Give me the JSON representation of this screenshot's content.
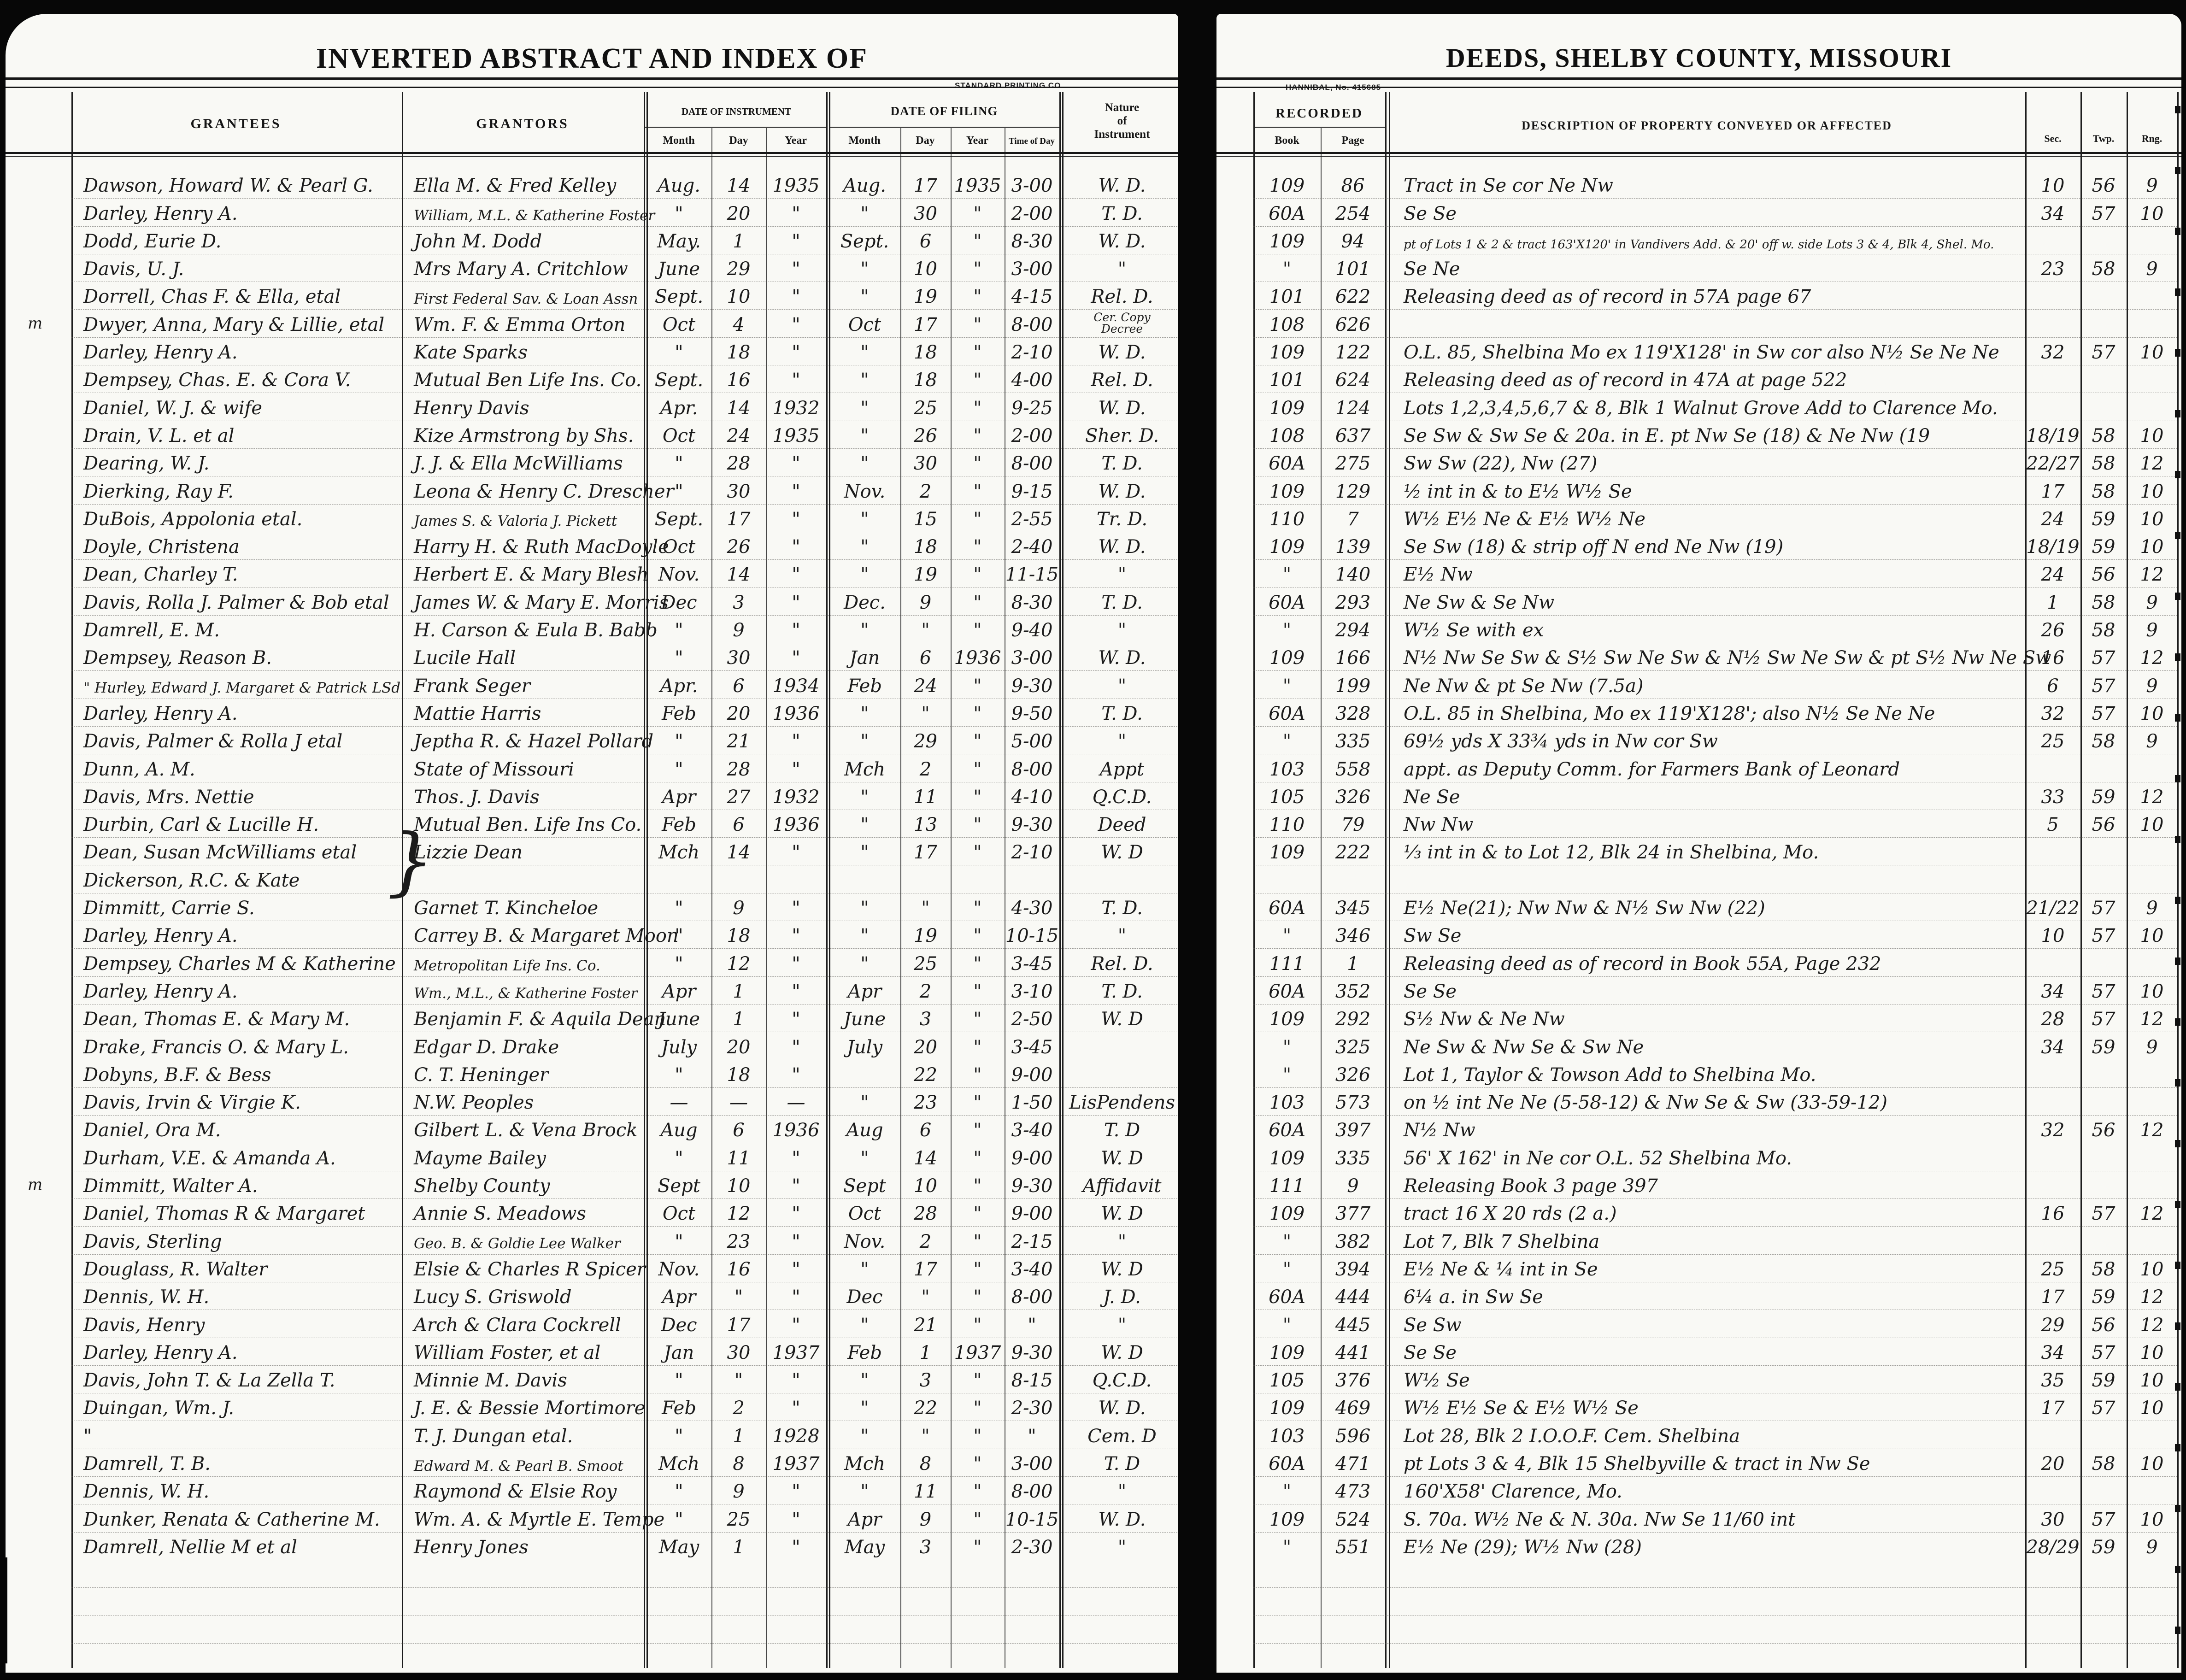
{
  "page_left": {
    "title": "INVERTED ABSTRACT AND INDEX OF",
    "printer_note": "STANDARD PRINTING CO.",
    "headers": {
      "grantees": "GRANTEES",
      "grantors": "GRANTORS",
      "date_of_instrument": "DATE OF INSTRUMENT",
      "date_of_filing": "DATE OF FILING",
      "month": "Month",
      "day": "Day",
      "year": "Year",
      "time_of_day": "Time of Day",
      "nature": "Nature\nof\nInstrument"
    }
  },
  "page_right": {
    "title": "DEEDS,  SHELBY  COUNTY,  MISSOURI",
    "printer_note": "HANNIBAL,  No. 415685",
    "headers": {
      "recorded": "RECORDED",
      "book": "Book",
      "page": "Page",
      "description": "DESCRIPTION OF PROPERTY CONVEYED OR AFFECTED",
      "sec": "Sec.",
      "twp": "Twp.",
      "rng": "Rng."
    }
  },
  "marginalia": [
    {
      "glyph": "m",
      "row": 6
    },
    {
      "glyph": "m",
      "row": 37
    },
    {
      "glyph": "}",
      "row": 25,
      "span": 2
    }
  ],
  "rows": [
    {
      "g": "Dawson, Howard W. & Pearl G.",
      "r": "Ella M. & Fred Kelley",
      "im": "Aug.",
      "id": "14",
      "iy": "1935",
      "fm": "Aug.",
      "fd": "17",
      "fy": "1935",
      "t": "3-00",
      "n": "W. D.",
      "bk": "109",
      "pg": "86",
      "d": "Tract in Se cor Ne Nw",
      "s": "10",
      "tw": "56",
      "rn": "9"
    },
    {
      "g": "Darley, Henry A.",
      "r": "William, M.L. & Katherine Foster",
      "im": "\"",
      "id": "20",
      "iy": "\"",
      "fm": "\"",
      "fd": "30",
      "fy": "\"",
      "t": "2-00",
      "n": "T. D.",
      "bk": "60A",
      "pg": "254",
      "d": "Se Se",
      "s": "34",
      "tw": "57",
      "rn": "10"
    },
    {
      "g": "Dodd, Eurie D.",
      "r": "John M. Dodd",
      "im": "May.",
      "id": "1",
      "iy": "\"",
      "fm": "Sept.",
      "fd": "6",
      "fy": "\"",
      "t": "8-30",
      "n": "W. D.",
      "bk": "109",
      "pg": "94",
      "d": "pt of Lots 1 & 2 & tract 163'X120' in Vandivers Add. & 20' off w. side Lots 3 & 4, Blk 4, Shel. Mo.",
      "s": "",
      "tw": "",
      "rn": ""
    },
    {
      "g": "Davis, U. J.",
      "r": "Mrs Mary A. Critchlow",
      "im": "June",
      "id": "29",
      "iy": "\"",
      "fm": "\"",
      "fd": "10",
      "fy": "\"",
      "t": "3-00",
      "n": "\"",
      "bk": "\"",
      "pg": "101",
      "d": "Se Ne",
      "s": "23",
      "tw": "58",
      "rn": "9"
    },
    {
      "g": "Dorrell, Chas F. & Ella, etal",
      "r": "First Federal Sav. & Loan Assn",
      "im": "Sept.",
      "id": "10",
      "iy": "\"",
      "fm": "\"",
      "fd": "19",
      "fy": "\"",
      "t": "4-15",
      "n": "Rel. D.",
      "bk": "101",
      "pg": "622",
      "d": "Releasing deed as of record in 57A page 67",
      "s": "",
      "tw": "",
      "rn": ""
    },
    {
      "g": "Dwyer, Anna, Mary & Lillie, etal",
      "r": "Wm. F. & Emma Orton",
      "im": "Oct",
      "id": "4",
      "iy": "\"",
      "fm": "Oct",
      "fd": "17",
      "fy": "\"",
      "t": "8-00",
      "n": "Cer. Copy\nDecree",
      "bk": "108",
      "pg": "626",
      "d": "",
      "s": "",
      "tw": "",
      "rn": ""
    },
    {
      "g": "Darley, Henry A.",
      "r": "Kate Sparks",
      "im": "\"",
      "id": "18",
      "iy": "\"",
      "fm": "\"",
      "fd": "18",
      "fy": "\"",
      "t": "2-10",
      "n": "W. D.",
      "bk": "109",
      "pg": "122",
      "d": "O.L. 85, Shelbina Mo ex 119'X128' in Sw cor also N½ Se Ne Ne",
      "s": "32",
      "tw": "57",
      "rn": "10"
    },
    {
      "g": "Dempsey, Chas. E. & Cora V.",
      "r": "Mutual Ben Life Ins. Co.",
      "im": "Sept.",
      "id": "16",
      "iy": "\"",
      "fm": "\"",
      "fd": "18",
      "fy": "\"",
      "t": "4-00",
      "n": "Rel. D.",
      "bk": "101",
      "pg": "624",
      "d": "Releasing deed as of record in 47A at page 522",
      "s": "",
      "tw": "",
      "rn": ""
    },
    {
      "g": "Daniel, W. J. & wife",
      "r": "Henry Davis",
      "im": "Apr.",
      "id": "14",
      "iy": "1932",
      "fm": "\"",
      "fd": "25",
      "fy": "\"",
      "t": "9-25",
      "n": "W. D.",
      "bk": "109",
      "pg": "124",
      "d": "Lots 1,2,3,4,5,6,7 & 8, Blk 1 Walnut Grove Add to Clarence Mo.",
      "s": "",
      "tw": "",
      "rn": ""
    },
    {
      "g": "Drain, V. L. et al",
      "r": "Kize Armstrong by Shs.",
      "im": "Oct",
      "id": "24",
      "iy": "1935",
      "fm": "\"",
      "fd": "26",
      "fy": "\"",
      "t": "2-00",
      "n": "Sher. D.",
      "bk": "108",
      "pg": "637",
      "d": "Se Sw & Sw Se & 20a. in E. pt Nw Se (18) & Ne Nw (19",
      "s": "18/19",
      "tw": "58",
      "rn": "10"
    },
    {
      "g": "Dearing, W. J.",
      "r": "J. J. & Ella McWilliams",
      "im": "\"",
      "id": "28",
      "iy": "\"",
      "fm": "\"",
      "fd": "30",
      "fy": "\"",
      "t": "8-00",
      "n": "T. D.",
      "bk": "60A",
      "pg": "275",
      "d": "Sw Sw (22), Nw (27)",
      "s": "22/27",
      "tw": "58",
      "rn": "12"
    },
    {
      "g": "Dierking, Ray F.",
      "r": "Leona & Henry C. Drescher",
      "im": "\"",
      "id": "30",
      "iy": "\"",
      "fm": "Nov.",
      "fd": "2",
      "fy": "\"",
      "t": "9-15",
      "n": "W. D.",
      "bk": "109",
      "pg": "129",
      "d": "½ int in & to E½ W½ Se",
      "s": "17",
      "tw": "58",
      "rn": "10"
    },
    {
      "g": "DuBois, Appolonia  etal.",
      "r": "James S. & Valoria J. Pickett",
      "im": "Sept.",
      "id": "17",
      "iy": "\"",
      "fm": "\"",
      "fd": "15",
      "fy": "\"",
      "t": "2-55",
      "n": "Tr. D.",
      "bk": "110",
      "pg": "7",
      "d": "W½ E½ Ne & E½ W½ Ne",
      "s": "24",
      "tw": "59",
      "rn": "10"
    },
    {
      "g": "Doyle, Christena",
      "r": "Harry H. & Ruth MacDoyle",
      "im": "Oct",
      "id": "26",
      "iy": "\"",
      "fm": "\"",
      "fd": "18",
      "fy": "\"",
      "t": "2-40",
      "n": "W. D.",
      "bk": "109",
      "pg": "139",
      "d": "Se Sw (18) & strip off N end Ne Nw (19)",
      "s": "18/19",
      "tw": "59",
      "rn": "10"
    },
    {
      "g": "Dean, Charley T.",
      "r": "Herbert E. & Mary Blesh",
      "im": "Nov.",
      "id": "14",
      "iy": "\"",
      "fm": "\"",
      "fd": "19",
      "fy": "\"",
      "t": "11-15",
      "n": "\"",
      "bk": "\"",
      "pg": "140",
      "d": "E½ Nw",
      "s": "24",
      "tw": "56",
      "rn": "12"
    },
    {
      "g": "Davis, Rolla J. Palmer & Bob etal",
      "r": "James W. & Mary E. Morris",
      "im": "Dec",
      "id": "3",
      "iy": "\"",
      "fm": "Dec.",
      "fd": "9",
      "fy": "\"",
      "t": "8-30",
      "n": "T. D.",
      "bk": "60A",
      "pg": "293",
      "d": "Ne Sw & Se Nw",
      "s": "1",
      "tw": "58",
      "rn": "9"
    },
    {
      "g": "Damrell, E. M.",
      "r": "H. Carson & Eula B. Babb",
      "im": "\"",
      "id": "9",
      "iy": "\"",
      "fm": "\"",
      "fd": "\"",
      "fy": "\"",
      "t": "9-40",
      "n": "\"",
      "bk": "\"",
      "pg": "294",
      "d": "W½ Se with ex",
      "s": "26",
      "tw": "58",
      "rn": "9"
    },
    {
      "g": "Dempsey, Reason B.",
      "r": "Lucile Hall",
      "im": "\"",
      "id": "30",
      "iy": "\"",
      "fm": "Jan",
      "fd": "6",
      "fy": "1936",
      "t": "3-00",
      "n": "W. D.",
      "bk": "109",
      "pg": "166",
      "d": "N½ Nw Se Sw & S½ Sw Ne Sw & N½ Sw Ne Sw & pt S½ Nw Ne Sw",
      "s": "16",
      "tw": "57",
      "rn": "12"
    },
    {
      "g": "\"  Hurley, Edward J. Margaret & Patrick LSd",
      "r": "Frank Seger",
      "im": "Apr.",
      "id": "6",
      "iy": "1934",
      "fm": "Feb",
      "fd": "24",
      "fy": "\"",
      "t": "9-30",
      "n": "\"",
      "bk": "\"",
      "pg": "199",
      "d": "Ne Nw & pt Se Nw (7.5a)",
      "s": "6",
      "tw": "57",
      "rn": "9"
    },
    {
      "g": "Darley, Henry A.",
      "r": "Mattie Harris",
      "im": "Feb",
      "id": "20",
      "iy": "1936",
      "fm": "\"",
      "fd": "\"",
      "fy": "\"",
      "t": "9-50",
      "n": "T. D.",
      "bk": "60A",
      "pg": "328",
      "d": "O.L. 85 in Shelbina, Mo ex 119'X128';  also N½ Se Ne Ne",
      "s": "32",
      "tw": "57",
      "rn": "10"
    },
    {
      "g": "Davis, Palmer & Rolla J etal",
      "r": "Jeptha R. & Hazel Pollard",
      "im": "\"",
      "id": "21",
      "iy": "\"",
      "fm": "\"",
      "fd": "29",
      "fy": "\"",
      "t": "5-00",
      "n": "\"",
      "bk": "\"",
      "pg": "335",
      "d": "69½ yds X 33¾ yds in Nw cor Sw",
      "s": "25",
      "tw": "58",
      "rn": "9"
    },
    {
      "g": "Dunn, A. M.",
      "r": "State of Missouri",
      "im": "\"",
      "id": "28",
      "iy": "\"",
      "fm": "Mch",
      "fd": "2",
      "fy": "\"",
      "t": "8-00",
      "n": "Appt",
      "bk": "103",
      "pg": "558",
      "d": "appt. as Deputy Comm. for Farmers Bank of Leonard",
      "s": "",
      "tw": "",
      "rn": ""
    },
    {
      "g": "Davis, Mrs. Nettie",
      "r": "Thos. J. Davis",
      "im": "Apr",
      "id": "27",
      "iy": "1932",
      "fm": "\"",
      "fd": "11",
      "fy": "\"",
      "t": "4-10",
      "n": "Q.C.D.",
      "bk": "105",
      "pg": "326",
      "d": "Ne Se",
      "s": "33",
      "tw": "59",
      "rn": "12"
    },
    {
      "g": "Durbin, Carl & Lucille H.",
      "r": "Mutual Ben. Life Ins Co.",
      "im": "Feb",
      "id": "6",
      "iy": "1936",
      "fm": "\"",
      "fd": "13",
      "fy": "\"",
      "t": "9-30",
      "n": "Deed",
      "bk": "110",
      "pg": "79",
      "d": "Nw Nw",
      "s": "5",
      "tw": "56",
      "rn": "10"
    },
    {
      "g": "Dean, Susan McWilliams etal",
      "r": "Lizzie Dean",
      "im": "Mch",
      "id": "14",
      "iy": "\"",
      "fm": "\"",
      "fd": "17",
      "fy": "\"",
      "t": "2-10",
      "n": "W. D",
      "bk": "109",
      "pg": "222",
      "d": "⅓ int in & to Lot 12, Blk 24  in Shelbina, Mo.",
      "s": "",
      "tw": "",
      "rn": ""
    },
    {
      "g": "Dickerson, R.C. & Kate",
      "r": "",
      "im": "",
      "id": "",
      "iy": "",
      "fm": "",
      "fd": "",
      "fy": "",
      "t": "",
      "n": "",
      "bk": "",
      "pg": "",
      "d": "",
      "s": "",
      "tw": "",
      "rn": ""
    },
    {
      "g": "Dimmitt, Carrie S.",
      "r": "Garnet T. Kincheloe",
      "im": "\"",
      "id": "9",
      "iy": "\"",
      "fm": "\"",
      "fd": "\"",
      "fy": "\"",
      "t": "4-30",
      "n": "T. D.",
      "bk": "60A",
      "pg": "345",
      "d": "E½ Ne(21);  Nw Nw & N½ Sw Nw (22)",
      "s": "21/22",
      "tw": "57",
      "rn": "9"
    },
    {
      "g": "Darley, Henry A.",
      "r": "Carrey B. & Margaret Moon",
      "im": "\"",
      "id": "18",
      "iy": "\"",
      "fm": "\"",
      "fd": "19",
      "fy": "\"",
      "t": "10-15",
      "n": "\"",
      "bk": "\"",
      "pg": "346",
      "d": "Sw Se",
      "s": "10",
      "tw": "57",
      "rn": "10"
    },
    {
      "g": "Dempsey, Charles M & Katherine",
      "r": "Metropolitan Life Ins. Co.",
      "im": "\"",
      "id": "12",
      "iy": "\"",
      "fm": "\"",
      "fd": "25",
      "fy": "\"",
      "t": "3-45",
      "n": "Rel. D.",
      "bk": "111",
      "pg": "1",
      "d": "Releasing deed as of record in Book 55A, Page 232",
      "s": "",
      "tw": "",
      "rn": ""
    },
    {
      "g": "Darley, Henry A.",
      "r": "Wm., M.L., & Katherine Foster",
      "im": "Apr",
      "id": "1",
      "iy": "\"",
      "fm": "Apr",
      "fd": "2",
      "fy": "\"",
      "t": "3-10",
      "n": "T. D.",
      "bk": "60A",
      "pg": "352",
      "d": "Se Se",
      "s": "34",
      "tw": "57",
      "rn": "10"
    },
    {
      "g": "Dean, Thomas E. & Mary M.",
      "r": "Benjamin F. & Aquila Dean",
      "im": "June",
      "id": "1",
      "iy": "\"",
      "fm": "June",
      "fd": "3",
      "fy": "\"",
      "t": "2-50",
      "n": "W. D",
      "bk": "109",
      "pg": "292",
      "d": "S½ Nw & Ne Nw",
      "s": "28",
      "tw": "57",
      "rn": "12"
    },
    {
      "g": "Drake, Francis O. & Mary L.",
      "r": "Edgar D. Drake",
      "im": "July",
      "id": "20",
      "iy": "\"",
      "fm": "July",
      "fd": "20",
      "fy": "\"",
      "t": "3-45",
      "n": "",
      "bk": "\"",
      "pg": "325",
      "d": "Ne Sw & Nw Se & Sw Ne",
      "s": "34",
      "tw": "59",
      "rn": "9"
    },
    {
      "g": "Dobyns, B.F. & Bess",
      "r": "C. T. Heninger",
      "im": "\"",
      "id": "18",
      "iy": "\"",
      "fm": "",
      "fd": "22",
      "fy": "\"",
      "t": "9-00",
      "n": "",
      "bk": "\"",
      "pg": "326",
      "d": "Lot 1, Taylor & Towson Add to Shelbina Mo.",
      "s": "",
      "tw": "",
      "rn": ""
    },
    {
      "g": "Davis, Irvin & Virgie K.",
      "r": "N.W. Peoples",
      "im": "—",
      "id": "—",
      "iy": "—",
      "fm": "\"",
      "fd": "23",
      "fy": "\"",
      "t": "1-50",
      "n": "LisPendens",
      "bk": "103",
      "pg": "573",
      "d": "on ½ int Ne Ne (5-58-12) & Nw Se & Sw (33-59-12)",
      "s": "",
      "tw": "",
      "rn": ""
    },
    {
      "g": "Daniel, Ora M.",
      "r": "Gilbert L. & Vena Brock",
      "im": "Aug",
      "id": "6",
      "iy": "1936",
      "fm": "Aug",
      "fd": "6",
      "fy": "\"",
      "t": "3-40",
      "n": "T. D",
      "bk": "60A",
      "pg": "397",
      "d": "N½ Nw",
      "s": "32",
      "tw": "56",
      "rn": "12"
    },
    {
      "g": "Durham, V.E. & Amanda A.",
      "r": "Mayme Bailey",
      "im": "\"",
      "id": "11",
      "iy": "\"",
      "fm": "\"",
      "fd": "14",
      "fy": "\"",
      "t": "9-00",
      "n": "W. D",
      "bk": "109",
      "pg": "335",
      "d": "56' X 162'  in Ne cor O.L. 52 Shelbina Mo.",
      "s": "",
      "tw": "",
      "rn": ""
    },
    {
      "g": "Dimmitt, Walter A.",
      "r": "Shelby County",
      "im": "Sept",
      "id": "10",
      "iy": "\"",
      "fm": "Sept",
      "fd": "10",
      "fy": "\"",
      "t": "9-30",
      "n": "Affidavit",
      "bk": "111",
      "pg": "9",
      "d": "Releasing  Book 3  page 397",
      "s": "",
      "tw": "",
      "rn": ""
    },
    {
      "g": "Daniel, Thomas R & Margaret",
      "r": "Annie S. Meadows",
      "im": "Oct",
      "id": "12",
      "iy": "\"",
      "fm": "Oct",
      "fd": "28",
      "fy": "\"",
      "t": "9-00",
      "n": "W. D",
      "bk": "109",
      "pg": "377",
      "d": "tract 16 X 20 rds (2 a.)",
      "s": "16",
      "tw": "57",
      "rn": "12"
    },
    {
      "g": "Davis, Sterling",
      "r": "Geo. B. & Goldie Lee Walker",
      "im": "\"",
      "id": "23",
      "iy": "\"",
      "fm": "Nov.",
      "fd": "2",
      "fy": "\"",
      "t": "2-15",
      "n": "\"",
      "bk": "\"",
      "pg": "382",
      "d": "Lot 7, Blk 7  Shelbina",
      "s": "",
      "tw": "",
      "rn": ""
    },
    {
      "g": "Douglass, R. Walter",
      "r": "Elsie & Charles R Spicer",
      "im": "Nov.",
      "id": "16",
      "iy": "\"",
      "fm": "\"",
      "fd": "17",
      "fy": "\"",
      "t": "3-40",
      "n": "W. D",
      "bk": "\"",
      "pg": "394",
      "d": "E½ Ne  & ¼ int in Se",
      "s": "25",
      "tw": "58",
      "rn": "10"
    },
    {
      "g": "Dennis, W. H.",
      "r": "Lucy S. Griswold",
      "im": "Apr",
      "id": "\"",
      "iy": "\"",
      "fm": "Dec",
      "fd": "\"",
      "fy": "\"",
      "t": "8-00",
      "n": "J. D.",
      "bk": "60A",
      "pg": "444",
      "d": "6¼ a. in Sw Se",
      "s": "17",
      "tw": "59",
      "rn": "12"
    },
    {
      "g": "Davis, Henry",
      "r": "Arch & Clara Cockrell",
      "im": "Dec",
      "id": "17",
      "iy": "\"",
      "fm": "\"",
      "fd": "21",
      "fy": "\"",
      "t": "\"",
      "n": "\"",
      "bk": "\"",
      "pg": "445",
      "d": "Se Sw",
      "s": "29",
      "tw": "56",
      "rn": "12"
    },
    {
      "g": "Darley, Henry A.",
      "r": "William Foster, et al",
      "im": "Jan",
      "id": "30",
      "iy": "1937",
      "fm": "Feb",
      "fd": "1",
      "fy": "1937",
      "t": "9-30",
      "n": "W. D",
      "bk": "109",
      "pg": "441",
      "d": "Se Se",
      "s": "34",
      "tw": "57",
      "rn": "10"
    },
    {
      "g": "Davis, John T. & La Zella T.",
      "r": "Minnie  M. Davis",
      "im": "\"",
      "id": "\"",
      "iy": "\"",
      "fm": "\"",
      "fd": "3",
      "fy": "\"",
      "t": "8-15",
      "n": "Q.C.D.",
      "bk": "105",
      "pg": "376",
      "d": "W½ Se",
      "s": "35",
      "tw": "59",
      "rn": "10"
    },
    {
      "g": "Duingan, Wm. J.",
      "r": "J. E. & Bessie Mortimore",
      "im": "Feb",
      "id": "2",
      "iy": "\"",
      "fm": "\"",
      "fd": "22",
      "fy": "\"",
      "t": "2-30",
      "n": "W. D.",
      "bk": "109",
      "pg": "469",
      "d": "W½ E½ Se  & E½ W½ Se",
      "s": "17",
      "tw": "57",
      "rn": "10"
    },
    {
      "g": "\"",
      "r": "T. J. Dungan etal.",
      "im": "\"",
      "id": "1",
      "iy": "1928",
      "fm": "\"",
      "fd": "\"",
      "fy": "\"",
      "t": "\"",
      "n": "Cem. D",
      "bk": "103",
      "pg": "596",
      "d": "Lot 28, Blk 2    I.O.O.F. Cem. Shelbina",
      "s": "",
      "tw": "",
      "rn": ""
    },
    {
      "g": "Damrell, T. B.",
      "r": "Edward M. & Pearl B. Smoot",
      "im": "Mch",
      "id": "8",
      "iy": "1937",
      "fm": "Mch",
      "fd": "8",
      "fy": "\"",
      "t": "3-00",
      "n": "T. D",
      "bk": "60A",
      "pg": "471",
      "d": "pt Lots 3 & 4, Blk 15 Shelbyville & tract in Nw Se",
      "s": "20",
      "tw": "58",
      "rn": "10"
    },
    {
      "g": "Dennis, W. H.",
      "r": "Raymond & Elsie Roy",
      "im": "\"",
      "id": "9",
      "iy": "\"",
      "fm": "\"",
      "fd": "11",
      "fy": "\"",
      "t": "8-00",
      "n": "\"",
      "bk": "\"",
      "pg": "473",
      "d": "160'X58'  Clarence,  Mo.",
      "s": "",
      "tw": "",
      "rn": ""
    },
    {
      "g": "Dunker, Renata & Catherine M.",
      "r": "Wm. A. & Myrtle E. Tempe",
      "im": "\"",
      "id": "25",
      "iy": "\"",
      "fm": "Apr",
      "fd": "9",
      "fy": "\"",
      "t": "10-15",
      "n": "W. D.",
      "bk": "109",
      "pg": "524",
      "d": "S. 70a. W½ Ne & N. 30a. Nw Se     11/60 int",
      "s": "30",
      "tw": "57",
      "rn": "10"
    },
    {
      "g": "Damrell, Nellie M et al",
      "r": "Henry  Jones",
      "im": "May",
      "id": "1",
      "iy": "\"",
      "fm": "May",
      "fd": "3",
      "fy": "\"",
      "t": "2-30",
      "n": "\"",
      "bk": "\"",
      "pg": "551",
      "d": "E½ Ne (29);  W½ Nw (28)",
      "s": "28/29",
      "tw": "59",
      "rn": "9"
    }
  ]
}
